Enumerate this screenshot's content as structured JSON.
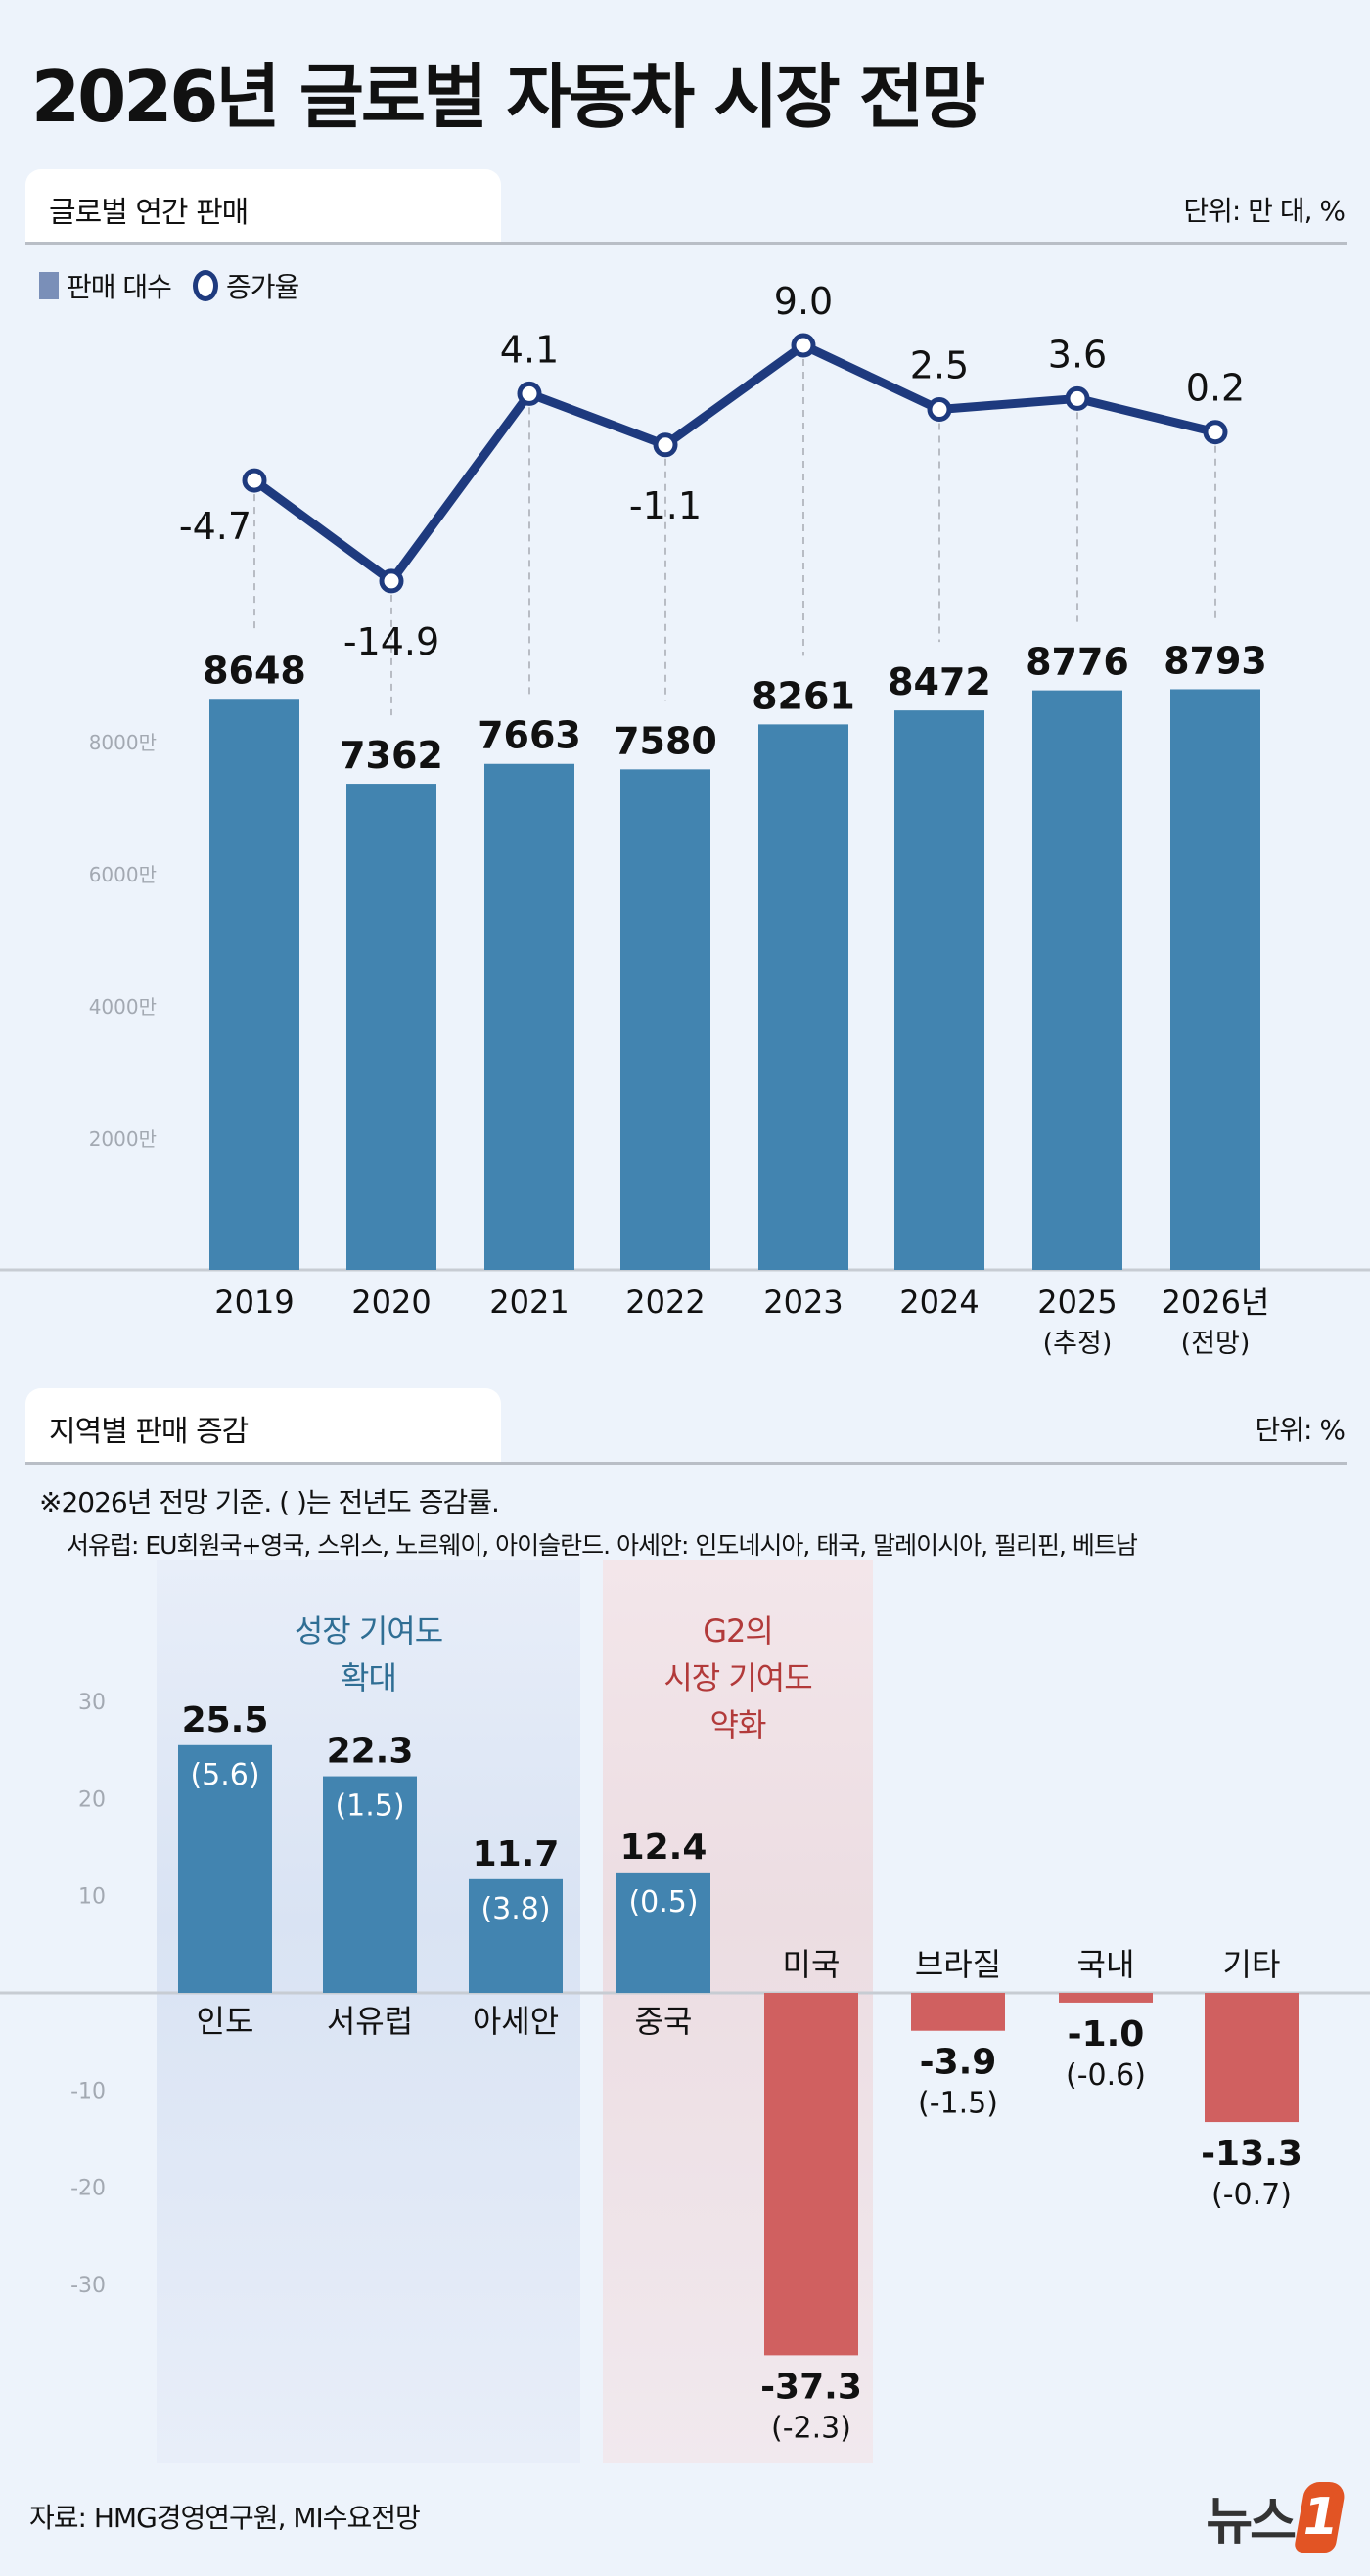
{
  "title": "2026년 글로벌 자동차 시장 전망",
  "section1": {
    "title": "글로벌 연간 판매",
    "unit": "단위: 만 대, %",
    "legend_bars": "판매 대수",
    "legend_line": "증가율"
  },
  "section2": {
    "title": "지역별 판매 증감",
    "unit": "단위: %",
    "note1": "※2026년 전망 기준. ( )는 전년도 증감률.",
    "note2": "서유럽: EU회원국+영국, 스위스, 노르웨이, 아이슬란드. 아세안: 인도네시아, 태국, 말레이시아, 필리핀, 베트남",
    "band_blue": [
      "성장 기여도",
      "확대"
    ],
    "band_red": [
      "G2의",
      "시장 기여도",
      "약화"
    ]
  },
  "source": "자료: HMG경영연구원, MI수요전망",
  "logo": "뉴스1",
  "colors": {
    "bar": "#4284b0",
    "line": "#1e3a7e",
    "negative_bar": "#d06060",
    "blue_text": "#2f6e94",
    "red_text": "#b23a3a",
    "background": "#edf3fb"
  },
  "chart_data": [
    {
      "type": "bar+line",
      "categories": [
        [
          "2019"
        ],
        [
          "2020"
        ],
        [
          "2021"
        ],
        [
          "2022"
        ],
        [
          "2023"
        ],
        [
          "2024"
        ],
        [
          "2025",
          "(추정)"
        ],
        [
          "2026년",
          "(전망)"
        ]
      ],
      "series": [
        {
          "name": "판매 대수",
          "type": "bar",
          "values": [
            8648,
            7362,
            7663,
            7580,
            8261,
            8472,
            8776,
            8793
          ]
        },
        {
          "name": "증가율",
          "type": "line",
          "values": [
            "-4.7",
            "-14.9",
            "4.1",
            "-1.1",
            "9.0",
            "2.5",
            "3.6",
            "0.2"
          ]
        }
      ],
      "yticks": [
        "2000만",
        "4000만",
        "6000만",
        "8000만"
      ],
      "ylim": [
        0,
        9000
      ],
      "grid": false
    },
    {
      "type": "bar",
      "categories": [
        "인도",
        "서유럽",
        "아세안",
        "중국",
        "미국",
        "브라질",
        "국내",
        "기타"
      ],
      "values": [
        "25.5",
        "22.3",
        "11.7",
        "12.4",
        "-37.3",
        "-3.9",
        "-1.0",
        "-13.3"
      ],
      "prior_year": [
        "(5.6)",
        "(1.5)",
        "(3.8)",
        "(0.5)",
        "(-2.3)",
        "(-1.5)",
        "(-0.6)",
        "(-0.7)"
      ],
      "yticks": [
        "30",
        "20",
        "10",
        "-10",
        "-20",
        "-30"
      ],
      "ylim": [
        -40,
        35
      ],
      "grid": false
    }
  ]
}
